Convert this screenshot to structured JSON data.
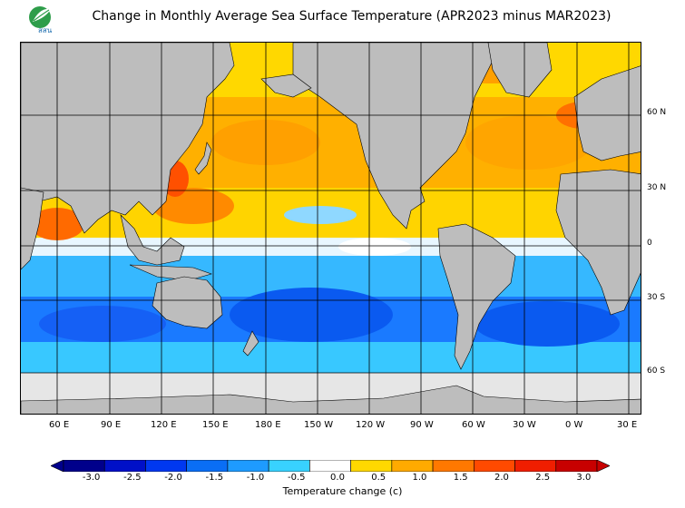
{
  "title": "Change in Monthly Average Sea Surface Temperature (APR2023 minus MAR2023)",
  "logo": {
    "text": "สสน",
    "icon": "leaf-logo-icon"
  },
  "longitude_labels": [
    "60 E",
    "90 E",
    "120 E",
    "150 E",
    "180 E",
    "150 W",
    "120 W",
    "90 W",
    "60 W",
    "30 W",
    "0 W",
    "30 E"
  ],
  "latitude_labels": [
    "60 N",
    "30 N",
    "0",
    "30 S",
    "60 S"
  ],
  "colorbar": {
    "labels": [
      "-3.0",
      "-2.5",
      "-2.0",
      "-1.5",
      "-1.0",
      "-0.5",
      "0.0",
      "0.5",
      "1.0",
      "1.5",
      "2.0",
      "2.5",
      "3.0"
    ],
    "colors": [
      "#00008b",
      "#0010c8",
      "#0038f0",
      "#0a6ef5",
      "#1e9bff",
      "#38d2ff",
      "#ffffff",
      "#ffd800",
      "#ffaa00",
      "#ff7800",
      "#ff4a00",
      "#f01e00",
      "#c80000"
    ],
    "caption": "Temperature change  (c)"
  },
  "colors": {
    "land": "#bdbdbd",
    "ice": "#e6e6e6",
    "grid": "#000000"
  }
}
